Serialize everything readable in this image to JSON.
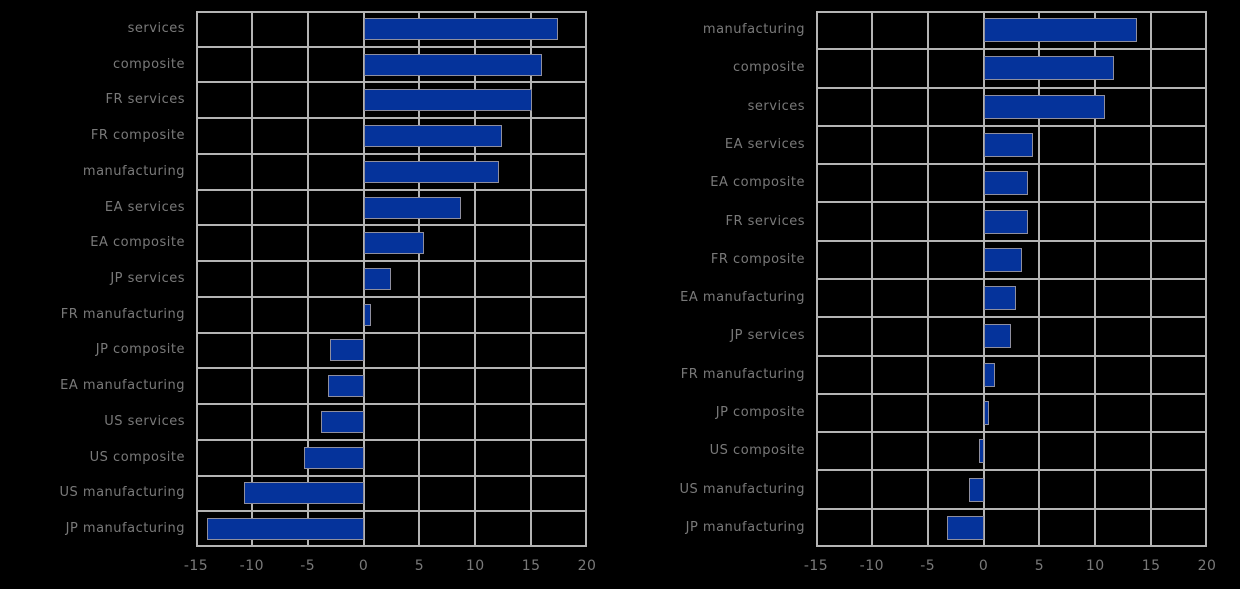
{
  "page": {
    "background_color": "#000000",
    "text_color": "#8f8f8f",
    "grid_color": "#b4b4b4",
    "bar_color": "#05339b"
  },
  "chart_data": [
    {
      "type": "bar",
      "orientation": "horizontal",
      "panel": "left",
      "title": "",
      "xlabel": "",
      "ylabel": "",
      "grid": true,
      "legend": "none",
      "xlim": [
        -15,
        20
      ],
      "xticks": [
        -15,
        -10,
        -5,
        0,
        5,
        10,
        15,
        20
      ],
      "categories": [
        "services",
        "composite",
        "FR services",
        "FR composite",
        "manufacturing",
        "EA services",
        "EA composite",
        "JP services",
        "FR manufacturing",
        "JP composite",
        "EA manufacturing",
        "US services",
        "US composite",
        "US manufacturing",
        "JP manufacturing"
      ],
      "values": [
        17.4,
        16.0,
        15.1,
        12.4,
        12.1,
        8.7,
        5.4,
        2.5,
        0.7,
        -3.0,
        -3.2,
        -3.8,
        -5.3,
        -10.7,
        -14.0
      ],
      "bar_color": "#05339b",
      "grid_color": "#b4b4b4",
      "text_color": "#8f8f8f",
      "background": "#000000"
    },
    {
      "type": "bar",
      "orientation": "horizontal",
      "panel": "right",
      "title": "",
      "xlabel": "",
      "ylabel": "",
      "grid": true,
      "legend": "none",
      "xlim": [
        -15,
        20
      ],
      "xticks": [
        -15,
        -10,
        -5,
        0,
        5,
        10,
        15,
        20
      ],
      "categories": [
        "manufacturing",
        "composite",
        "services",
        "EA services",
        "EA composite",
        "FR services",
        "FR composite",
        "EA manufacturing",
        "JP services",
        "FR manufacturing",
        "JP composite",
        "US composite",
        "US manufacturing",
        "JP manufacturing"
      ],
      "values": [
        13.7,
        11.7,
        10.9,
        4.4,
        4.0,
        4.0,
        3.4,
        2.9,
        2.5,
        1.0,
        0.5,
        -0.4,
        -1.3,
        -3.3
      ],
      "bar_color": "#05339b",
      "grid_color": "#b4b4b4",
      "text_color": "#8f8f8f",
      "background": "#000000"
    }
  ]
}
